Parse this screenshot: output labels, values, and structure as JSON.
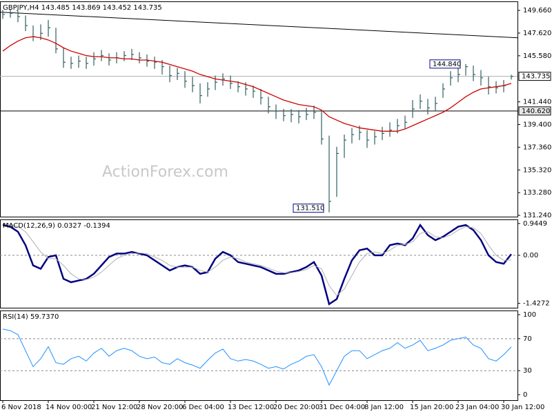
{
  "chart_data": [
    {
      "type": "ohlc",
      "label": "GBPJPY,H4 143.485 143.869 143.452 143.735",
      "watermark": "ActionForex.com",
      "ylim": [
        131.12,
        150.47
      ],
      "yticks": [
        {
          "value": 149.66,
          "label": "149.660"
        },
        {
          "value": 147.62,
          "label": "147.620"
        },
        {
          "value": 145.58,
          "label": "145.580"
        },
        {
          "value": 141.44,
          "label": "141.440"
        },
        {
          "value": 139.4,
          "label": "139.400"
        },
        {
          "value": 137.36,
          "label": "137.360"
        },
        {
          "value": 135.32,
          "label": "135.320"
        },
        {
          "value": 133.28,
          "label": "133.280"
        },
        {
          "value": 131.24,
          "label": "131.240"
        }
      ],
      "series": [
        {
          "color": "#2f5f5f",
          "high": [
            149.7,
            149.8,
            149.6,
            149.2,
            148.3,
            148.4,
            148.8,
            148.1,
            146.3,
            145.5,
            145.6,
            145.5,
            145.9,
            146.1,
            145.8,
            145.9,
            146.0,
            146.2,
            145.9,
            145.7,
            145.5,
            145.2,
            144.7,
            144.5,
            144.2,
            143.7,
            143.1,
            143.2,
            143.8,
            144.0,
            143.8,
            143.3,
            143.2,
            142.9,
            142.6,
            141.9,
            141.2,
            140.8,
            140.8,
            140.7,
            140.9,
            141.1,
            140.7,
            138.4,
            137.4,
            138.5,
            139.1,
            139.3,
            138.9,
            138.8,
            139.2,
            139.6,
            139.9,
            140.2,
            141.6,
            142.1,
            141.7,
            141.9,
            143.1,
            144.2,
            144.5,
            144.84,
            144.7,
            144.3,
            143.7,
            143.3,
            143.4,
            143.869
          ],
          "low": [
            148.9,
            149.0,
            148.6,
            147.8,
            146.9,
            147.0,
            147.3,
            145.8,
            144.5,
            144.4,
            144.5,
            144.4,
            144.7,
            145.1,
            144.7,
            144.9,
            145.1,
            145.2,
            144.9,
            144.6,
            144.4,
            143.9,
            143.2,
            143.4,
            142.7,
            142.3,
            141.3,
            141.9,
            142.5,
            142.9,
            142.6,
            142.3,
            142.0,
            141.8,
            141.2,
            140.4,
            139.9,
            139.7,
            139.6,
            139.5,
            139.8,
            139.9,
            137.6,
            131.51,
            132.9,
            136.4,
            137.7,
            138.0,
            137.3,
            137.6,
            138.0,
            138.3,
            138.6,
            139.0,
            140.0,
            140.8,
            140.3,
            140.6,
            141.8,
            142.9,
            143.2,
            143.8,
            143.3,
            142.9,
            142.1,
            142.2,
            142.3,
            143.452
          ],
          "close": [
            149.3,
            149.4,
            149.1,
            148.3,
            147.3,
            147.6,
            148.1,
            146.2,
            145.0,
            144.9,
            145.1,
            144.9,
            145.3,
            145.6,
            145.2,
            145.4,
            145.6,
            145.7,
            145.4,
            145.1,
            145.0,
            144.6,
            143.8,
            144.0,
            143.3,
            142.9,
            142.0,
            142.6,
            143.2,
            143.5,
            143.1,
            142.8,
            142.6,
            142.4,
            141.8,
            141.0,
            140.6,
            140.2,
            140.3,
            140.1,
            140.3,
            140.5,
            138.1,
            132.5,
            136.8,
            138.0,
            138.5,
            138.7,
            138.0,
            138.3,
            138.6,
            138.9,
            139.3,
            139.6,
            140.8,
            141.5,
            140.9,
            141.3,
            142.6,
            143.6,
            143.9,
            144.6,
            143.9,
            143.6,
            142.8,
            142.7,
            142.9,
            143.735
          ]
        },
        {
          "type": "line",
          "color": "#cc0000",
          "values": [
            146.0,
            146.5,
            146.9,
            147.2,
            147.3,
            147.2,
            147.0,
            146.7,
            146.3,
            146.0,
            145.8,
            145.6,
            145.5,
            145.5,
            145.4,
            145.4,
            145.3,
            145.3,
            145.2,
            145.2,
            145.1,
            145.0,
            144.8,
            144.6,
            144.4,
            144.2,
            143.9,
            143.7,
            143.5,
            143.4,
            143.3,
            143.2,
            143.0,
            142.8,
            142.5,
            142.2,
            141.9,
            141.6,
            141.4,
            141.2,
            141.1,
            141.0,
            140.7,
            140.1,
            139.8,
            139.5,
            139.3,
            139.1,
            139.0,
            138.9,
            138.8,
            138.8,
            138.8,
            139.0,
            139.3,
            139.6,
            139.9,
            140.2,
            140.5,
            140.9,
            141.4,
            141.9,
            142.3,
            142.6,
            142.7,
            142.8,
            142.9,
            143.1
          ]
        }
      ],
      "hlines": [
        {
          "value": 143.735,
          "label": "143.735",
          "color": "#b0b0b0"
        },
        {
          "value": 140.62,
          "label": "140.620",
          "color": "#000000"
        }
      ],
      "trendline": {
        "from": 149.5,
        "to": 147.2,
        "color": "#000000"
      },
      "annotations": [
        {
          "value": 144.84,
          "label": "144.840"
        },
        {
          "value": 131.51,
          "label": "131.510"
        }
      ]
    },
    {
      "type": "line",
      "label": "MACD(12,26,9) 0.0327 -0.1394",
      "ylim": [
        -1.558,
        1.066
      ],
      "yticks": [
        0.9449,
        {
          "value": 0,
          "label": "0.00"
        },
        -1.4272
      ],
      "levels": [
        0
      ],
      "series": [
        {
          "color": "#000080",
          "width": 2.5,
          "values": [
            0.9,
            0.85,
            0.7,
            0.3,
            -0.3,
            -0.4,
            -0.05,
            0.0,
            -0.7,
            -0.8,
            -0.75,
            -0.7,
            -0.55,
            -0.3,
            -0.05,
            0.05,
            0.05,
            0.1,
            0.05,
            0.0,
            -0.15,
            -0.3,
            -0.45,
            -0.35,
            -0.3,
            -0.35,
            -0.55,
            -0.5,
            -0.1,
            0.1,
            0.0,
            -0.2,
            -0.25,
            -0.3,
            -0.35,
            -0.45,
            -0.55,
            -0.55,
            -0.5,
            -0.45,
            -0.35,
            -0.2,
            -0.6,
            -1.45,
            -1.3,
            -0.7,
            -0.15,
            0.15,
            0.2,
            0.0,
            0.0,
            0.3,
            0.35,
            0.3,
            0.5,
            0.9,
            0.6,
            0.45,
            0.55,
            0.7,
            0.85,
            0.9,
            0.75,
            0.45,
            0.0,
            -0.2,
            -0.25,
            0.0327
          ]
        },
        {
          "color": "#b0b0b0",
          "width": 1,
          "values": [
            0.95,
            0.92,
            0.85,
            0.7,
            0.4,
            0.1,
            -0.1,
            -0.1,
            -0.3,
            -0.55,
            -0.7,
            -0.72,
            -0.65,
            -0.5,
            -0.3,
            -0.1,
            0.0,
            0.05,
            0.07,
            0.05,
            -0.05,
            -0.15,
            -0.3,
            -0.35,
            -0.35,
            -0.35,
            -0.45,
            -0.5,
            -0.35,
            -0.15,
            -0.05,
            -0.1,
            -0.2,
            -0.25,
            -0.3,
            -0.38,
            -0.47,
            -0.52,
            -0.52,
            -0.48,
            -0.42,
            -0.3,
            -0.4,
            -0.9,
            -1.2,
            -1.0,
            -0.6,
            -0.2,
            0.05,
            0.1,
            0.05,
            0.15,
            0.3,
            0.32,
            0.4,
            0.65,
            0.7,
            0.55,
            0.52,
            0.6,
            0.75,
            0.85,
            0.82,
            0.65,
            0.3,
            0.0,
            -0.15,
            -0.1394
          ]
        }
      ]
    },
    {
      "type": "line",
      "label": "RSI(14) 59.7370",
      "ylim": [
        -6.9,
        105.2
      ],
      "yticks": [
        100,
        70,
        30,
        0
      ],
      "levels": [
        70,
        30
      ],
      "series": [
        {
          "color": "#1e90ff",
          "width": 1,
          "values": [
            82,
            80,
            75,
            55,
            35,
            45,
            60,
            40,
            38,
            45,
            48,
            42,
            52,
            58,
            48,
            55,
            58,
            55,
            48,
            45,
            47,
            40,
            38,
            45,
            40,
            37,
            33,
            43,
            52,
            57,
            45,
            42,
            44,
            42,
            38,
            33,
            35,
            32,
            38,
            42,
            48,
            50,
            35,
            12,
            30,
            48,
            55,
            55,
            45,
            50,
            55,
            58,
            65,
            58,
            62,
            68,
            55,
            58,
            62,
            68,
            70,
            72,
            62,
            58,
            45,
            42,
            50,
            59.737
          ]
        }
      ],
      "categories": [
        "6 Nov 2018",
        null,
        null,
        null,
        null,
        null,
        "14 Nov 00:00",
        null,
        null,
        null,
        null,
        null,
        "21 Nov 12:00",
        null,
        null,
        null,
        null,
        null,
        "28 Nov 20:00",
        null,
        null,
        null,
        null,
        null,
        "6 Dec 04:00",
        null,
        null,
        null,
        null,
        null,
        "13 Dec 12:00",
        null,
        null,
        null,
        null,
        null,
        "20 Dec 20:00",
        null,
        null,
        null,
        null,
        null,
        "31 Dec 04:00",
        null,
        null,
        null,
        null,
        null,
        "8 Jan 12:00",
        null,
        null,
        null,
        null,
        null,
        "15 Jan 20:00",
        null,
        null,
        null,
        null,
        null,
        "23 Jan 04:00",
        null,
        null,
        null,
        null,
        null,
        "30 Jan 12:00",
        null
      ]
    }
  ]
}
